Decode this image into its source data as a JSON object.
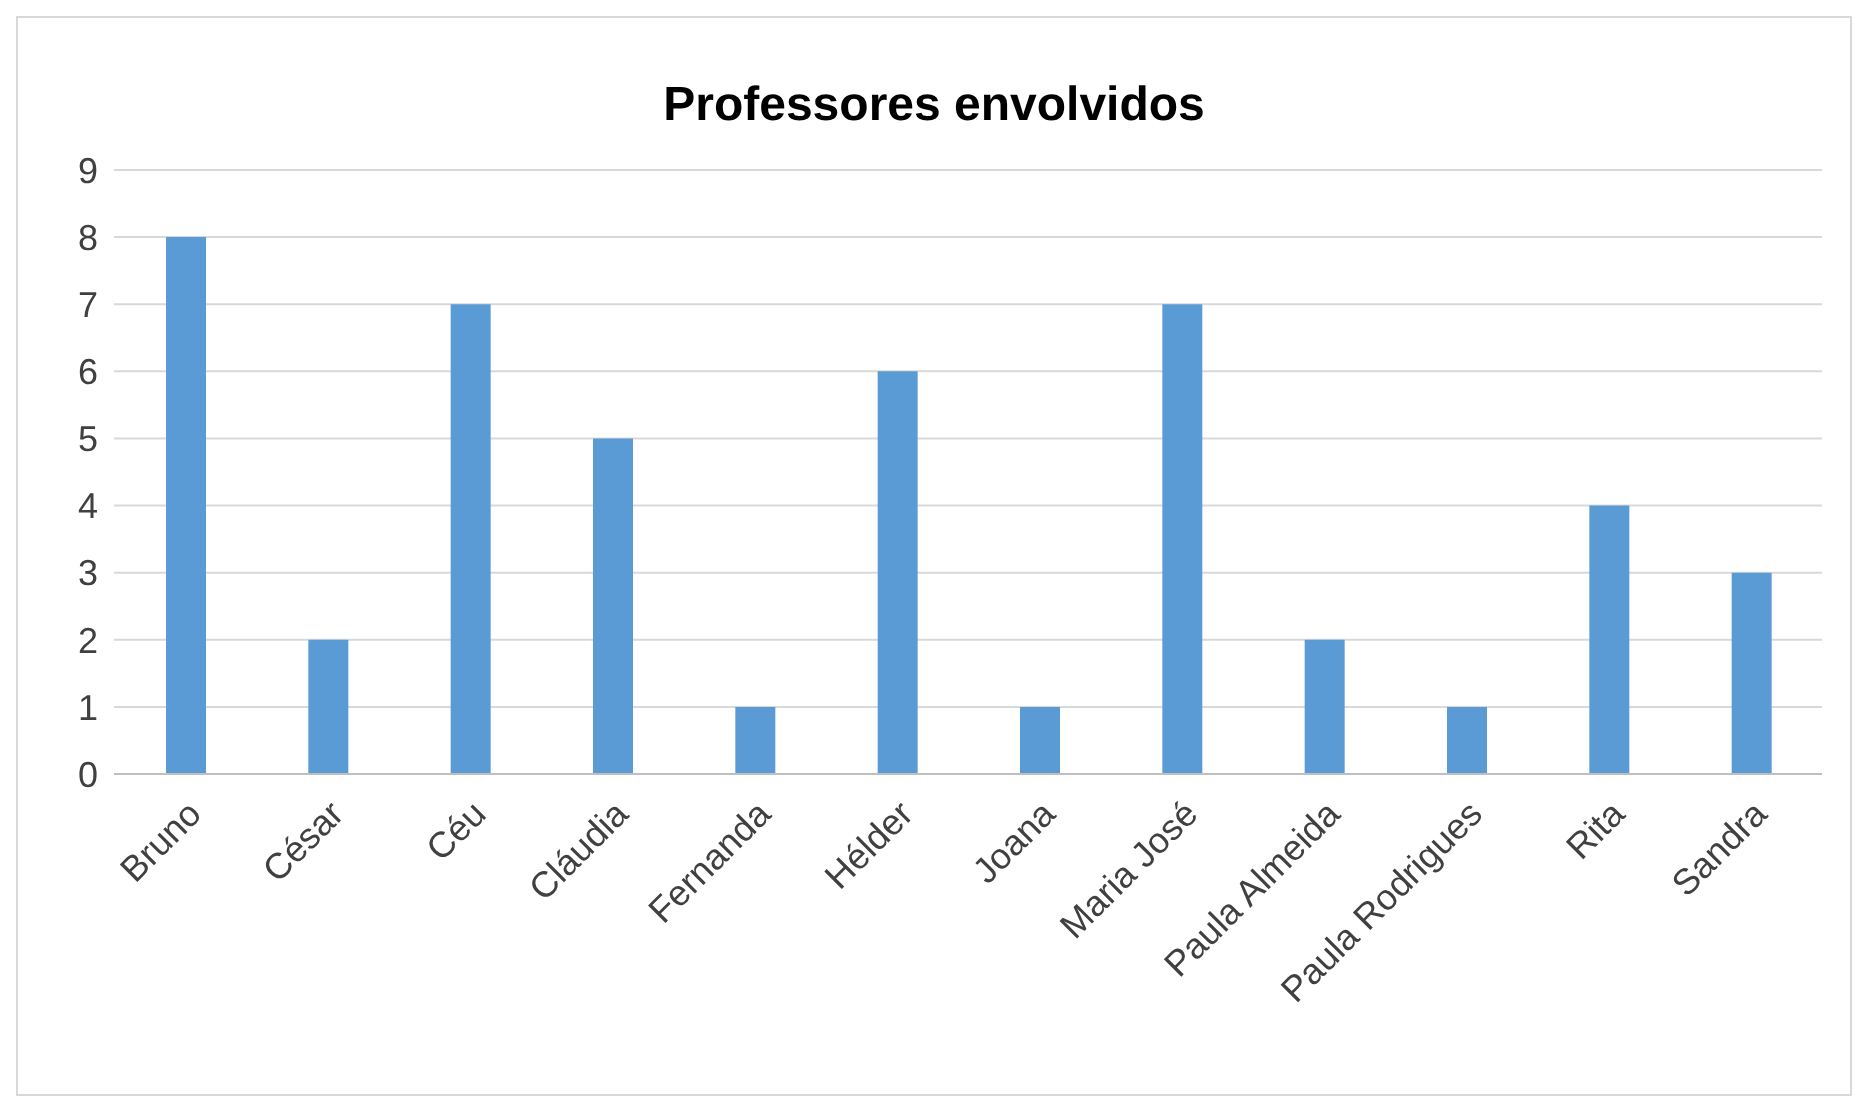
{
  "chart_data": {
    "type": "bar",
    "title": "Professores envolvidos",
    "categories": [
      "Bruno",
      "César",
      "Céu",
      "Cláudia",
      "Fernanda",
      "Hélder",
      "Joana",
      "Maria José",
      "Paula Almeida",
      "Paula Rodrigues",
      "Rita",
      "Sandra"
    ],
    "values": [
      8,
      2,
      7,
      5,
      1,
      6,
      1,
      7,
      2,
      1,
      4,
      3
    ],
    "color": "#5b9bd5",
    "ylim": [
      0,
      9
    ],
    "yticks": [
      0,
      1,
      2,
      3,
      4,
      5,
      6,
      7,
      8,
      9
    ],
    "grid": "y"
  }
}
